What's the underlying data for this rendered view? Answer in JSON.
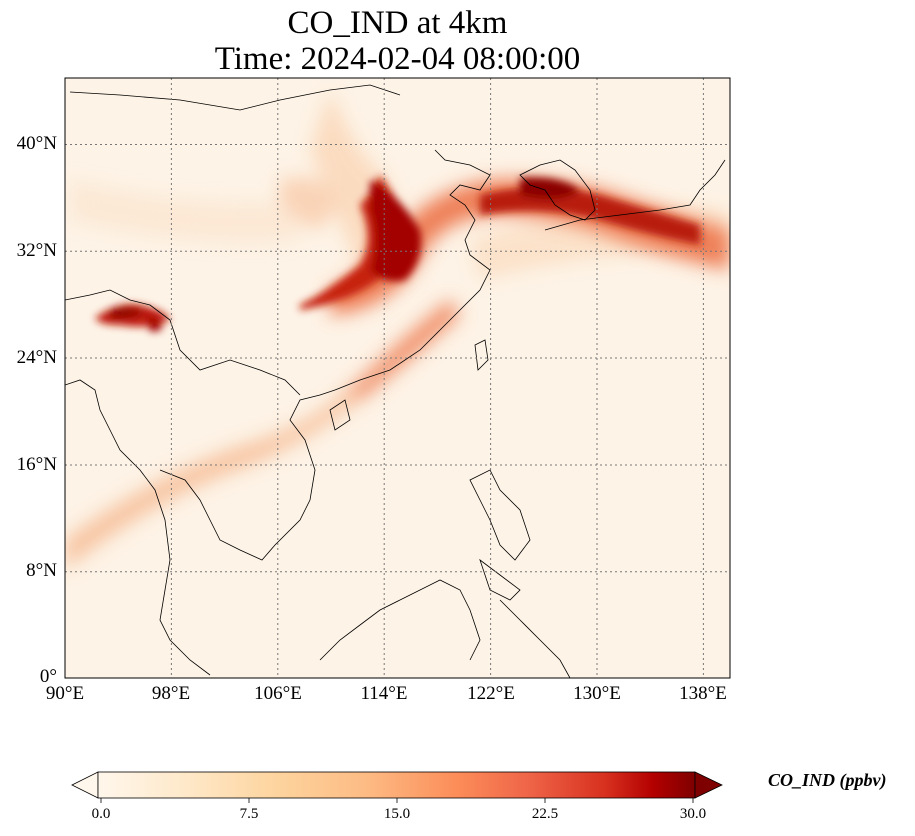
{
  "title": {
    "line1": "CO_IND at 4km",
    "line2": "Time: 2024-02-04 08:00:00"
  },
  "map": {
    "lon_range": [
      90,
      140
    ],
    "lat_range": [
      0,
      44
    ],
    "gridlines": "dotted"
  },
  "axes": {
    "lat_ticks": [
      "40°N",
      "32°N",
      "24°N",
      "16°N",
      "8°N",
      "0°"
    ],
    "lon_ticks": [
      "90°E",
      "98°E",
      "106°E",
      "114°E",
      "122°E",
      "130°E",
      "138°E"
    ]
  },
  "colorbar": {
    "label": "CO_IND (ppbv)",
    "colormap": "OrRd",
    "extend": "both",
    "range": [
      0.0,
      30.0
    ],
    "ticks": [
      "0.0",
      "7.5",
      "15.0",
      "22.5",
      "30.0"
    ]
  }
}
